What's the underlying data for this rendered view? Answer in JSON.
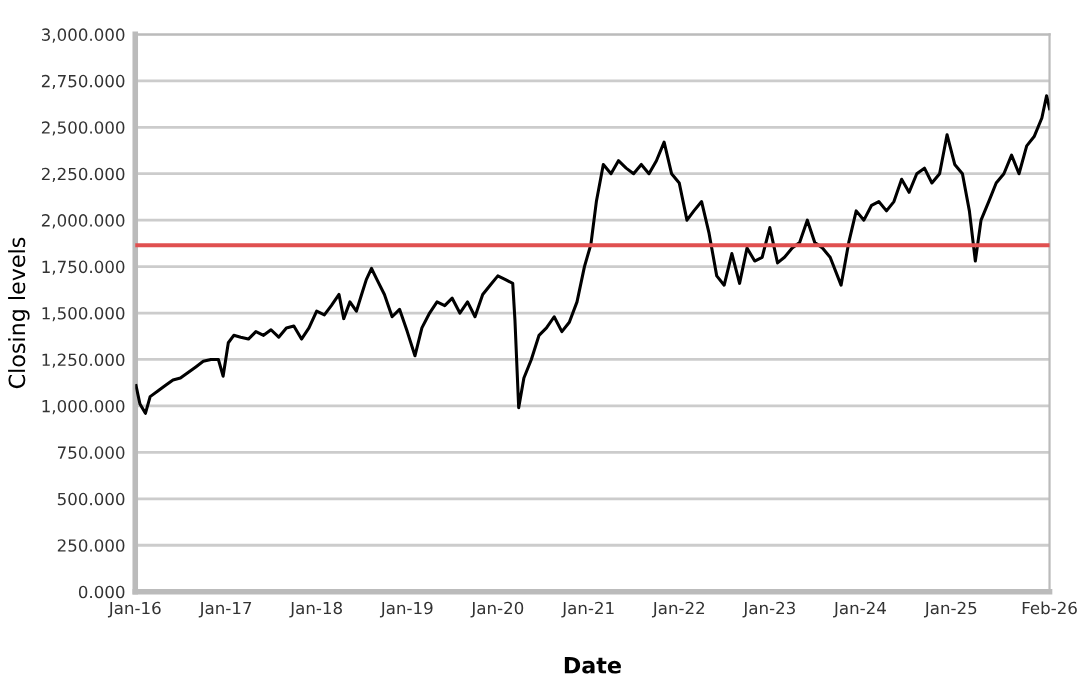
{
  "chart_data": {
    "type": "line",
    "xlabel": "Date",
    "ylabel": "Closing levels",
    "x": [
      "2016-01-04",
      "2016-01-20",
      "2016-02-11",
      "2016-03-01",
      "2016-04-01",
      "2016-05-01",
      "2016-06-01",
      "2016-07-01",
      "2016-08-01",
      "2016-09-01",
      "2016-10-01",
      "2016-11-01",
      "2016-12-01",
      "2016-12-20",
      "2017-01-10",
      "2017-02-01",
      "2017-03-01",
      "2017-04-01",
      "2017-05-01",
      "2017-06-01",
      "2017-07-01",
      "2017-08-01",
      "2017-09-01",
      "2017-10-01",
      "2017-11-01",
      "2017-12-01",
      "2018-01-01",
      "2018-02-01",
      "2018-03-01",
      "2018-04-01",
      "2018-04-20",
      "2018-05-15",
      "2018-06-10",
      "2018-07-01",
      "2018-07-20",
      "2018-08-10",
      "2018-09-01",
      "2018-10-01",
      "2018-11-01",
      "2018-12-01",
      "2019-01-01",
      "2019-02-01",
      "2019-03-01",
      "2019-04-01",
      "2019-05-01",
      "2019-06-01",
      "2019-07-01",
      "2019-08-01",
      "2019-09-01",
      "2019-10-01",
      "2019-11-01",
      "2019-12-01",
      "2020-01-01",
      "2020-02-01",
      "2020-03-01",
      "2020-03-10",
      "2020-03-25",
      "2020-04-15",
      "2020-05-15",
      "2020-06-15",
      "2020-07-15",
      "2020-08-15",
      "2020-09-15",
      "2020-10-15",
      "2020-11-15",
      "2020-12-15",
      "2021-01-10",
      "2021-02-01",
      "2021-03-01",
      "2021-04-01",
      "2021-05-01",
      "2021-06-01",
      "2021-07-01",
      "2021-08-01",
      "2021-09-01",
      "2021-10-01",
      "2021-11-01",
      "2021-12-01",
      "2022-01-01",
      "2022-02-01",
      "2022-03-01",
      "2022-04-01",
      "2022-05-01",
      "2022-06-01",
      "2022-07-01",
      "2022-08-01",
      "2022-09-01",
      "2022-10-01",
      "2022-11-01",
      "2022-12-01",
      "2023-01-01",
      "2023-02-01",
      "2023-03-01",
      "2023-04-01",
      "2023-05-01",
      "2023-06-01",
      "2023-07-01",
      "2023-08-01",
      "2023-09-01",
      "2023-10-15",
      "2023-11-15",
      "2023-12-15",
      "2024-01-15",
      "2024-02-15",
      "2024-03-15",
      "2024-04-15",
      "2024-05-15",
      "2024-06-15",
      "2024-07-15",
      "2024-08-15",
      "2024-09-15",
      "2024-10-15",
      "2024-11-15",
      "2024-12-15",
      "2025-01-15",
      "2025-02-15",
      "2025-03-15",
      "2025-04-08",
      "2025-05-01",
      "2025-06-01",
      "2025-07-01",
      "2025-08-01",
      "2025-09-01",
      "2025-10-01",
      "2025-11-01",
      "2025-12-01",
      "2026-01-01",
      "2026-01-20",
      "2026-02-01"
    ],
    "series": [
      {
        "color": "#000000",
        "values": [
          1110,
          1010,
          960,
          1050,
          1080,
          1110,
          1140,
          1150,
          1180,
          1210,
          1240,
          1250,
          1250,
          1160,
          1340,
          1380,
          1370,
          1360,
          1400,
          1380,
          1410,
          1370,
          1420,
          1430,
          1360,
          1420,
          1510,
          1490,
          1540,
          1600,
          1470,
          1560,
          1510,
          1600,
          1680,
          1740,
          1680,
          1600,
          1480,
          1520,
          1400,
          1270,
          1420,
          1500,
          1560,
          1540,
          1580,
          1500,
          1560,
          1480,
          1600,
          1650,
          1700,
          1680,
          1660,
          1460,
          990,
          1150,
          1250,
          1380,
          1420,
          1480,
          1400,
          1450,
          1560,
          1750,
          1870,
          2100,
          2300,
          2250,
          2320,
          2280,
          2250,
          2300,
          2250,
          2320,
          2420,
          2250,
          2200,
          2000,
          2050,
          2100,
          1930,
          1700,
          1650,
          1820,
          1660,
          1850,
          1780,
          1800,
          1960,
          1770,
          1800,
          1850,
          1880,
          2000,
          1880,
          1850,
          1800,
          1650,
          1880,
          2050,
          2000,
          2080,
          2100,
          2050,
          2100,
          2220,
          2150,
          2250,
          2280,
          2200,
          2250,
          2460,
          2300,
          2250,
          2050,
          1780,
          2000,
          2100,
          2200,
          2250,
          2350,
          2250,
          2400,
          2450,
          2550,
          2670,
          2600
        ]
      }
    ],
    "xlim": [
      "2016-01-01",
      "2026-02-01"
    ],
    "xticks": [
      {
        "value": "2016-01-01",
        "label": "Jan-16"
      },
      {
        "value": "2017-01-01",
        "label": "Jan-17"
      },
      {
        "value": "2018-01-01",
        "label": "Jan-18"
      },
      {
        "value": "2019-01-01",
        "label": "Jan-19"
      },
      {
        "value": "2020-01-01",
        "label": "Jan-20"
      },
      {
        "value": "2021-01-01",
        "label": "Jan-21"
      },
      {
        "value": "2022-01-01",
        "label": "Jan-22"
      },
      {
        "value": "2023-01-01",
        "label": "Jan-23"
      },
      {
        "value": "2024-01-01",
        "label": "Jan-24"
      },
      {
        "value": "2025-01-01",
        "label": "Jan-25"
      },
      {
        "value": "2026-02-01",
        "label": "Feb-26"
      }
    ],
    "ylim": [
      0,
      3000
    ],
    "yticks": [
      {
        "value": 0,
        "label": "0.000"
      },
      {
        "value": 250,
        "label": "250.000"
      },
      {
        "value": 500,
        "label": "500.000"
      },
      {
        "value": 750,
        "label": "750.000"
      },
      {
        "value": 1000,
        "label": "1,000.000"
      },
      {
        "value": 1250,
        "label": "1,250.000"
      },
      {
        "value": 1500,
        "label": "1,500.000"
      },
      {
        "value": 1750,
        "label": "1,750.000"
      },
      {
        "value": 2000,
        "label": "2,000.000"
      },
      {
        "value": 2250,
        "label": "2,250.000"
      },
      {
        "value": 2500,
        "label": "2,500.000"
      },
      {
        "value": 2750,
        "label": "2,750.000"
      },
      {
        "value": 3000,
        "label": "3,000.000"
      }
    ],
    "grid": "y",
    "ref_lines": [
      {
        "axis": "y",
        "value": 1865,
        "color": "#e05050"
      }
    ]
  }
}
